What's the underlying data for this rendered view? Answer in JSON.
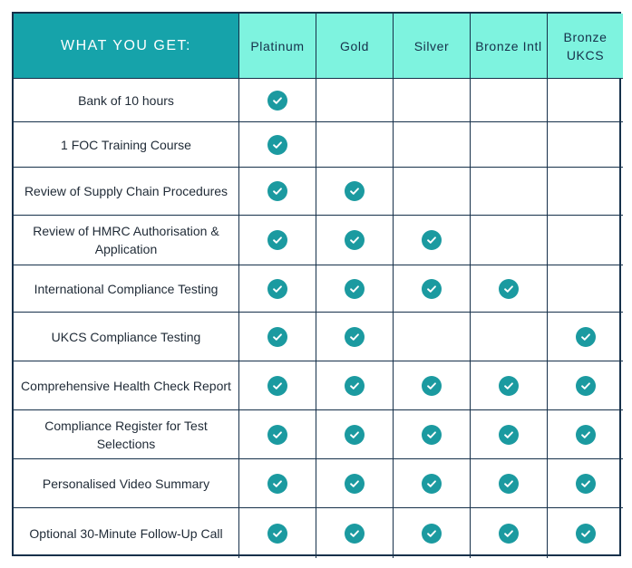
{
  "header": {
    "title": "WHAT YOU GET:"
  },
  "tiers": [
    "Platinum",
    "Gold",
    "Silver",
    "Bronze Intl",
    "Bronze UKCS"
  ],
  "rows": [
    {
      "label": "Bank of 10 hours",
      "checks": [
        true,
        false,
        false,
        false,
        false
      ]
    },
    {
      "label": "1 FOC Training Course",
      "checks": [
        true,
        false,
        false,
        false,
        false
      ]
    },
    {
      "label": "Review of Supply Chain Procedures",
      "checks": [
        true,
        true,
        false,
        false,
        false
      ]
    },
    {
      "label": "Review of HMRC Authorisation & Application",
      "checks": [
        true,
        true,
        true,
        false,
        false
      ]
    },
    {
      "label": "International Compliance Testing",
      "checks": [
        true,
        true,
        true,
        true,
        false
      ]
    },
    {
      "label": "UKCS Compliance Testing",
      "checks": [
        true,
        true,
        false,
        false,
        true
      ]
    },
    {
      "label": "Comprehensive Health Check Report",
      "checks": [
        true,
        true,
        true,
        true,
        true
      ]
    },
    {
      "label": "Compliance Register for Test Selections",
      "checks": [
        true,
        true,
        true,
        true,
        true
      ]
    },
    {
      "label": "Personalised Video Summary",
      "checks": [
        true,
        true,
        true,
        true,
        true
      ]
    },
    {
      "label": "Optional 30-Minute Follow-Up Call",
      "checks": [
        true,
        true,
        true,
        true,
        true
      ]
    }
  ],
  "colors": {
    "header_main_bg": "#16a3aa",
    "header_tier_bg": "#7ef3df",
    "check_color": "#1b9aa0",
    "border": "#16304a"
  },
  "icons": {
    "check": "check-circle-icon"
  }
}
